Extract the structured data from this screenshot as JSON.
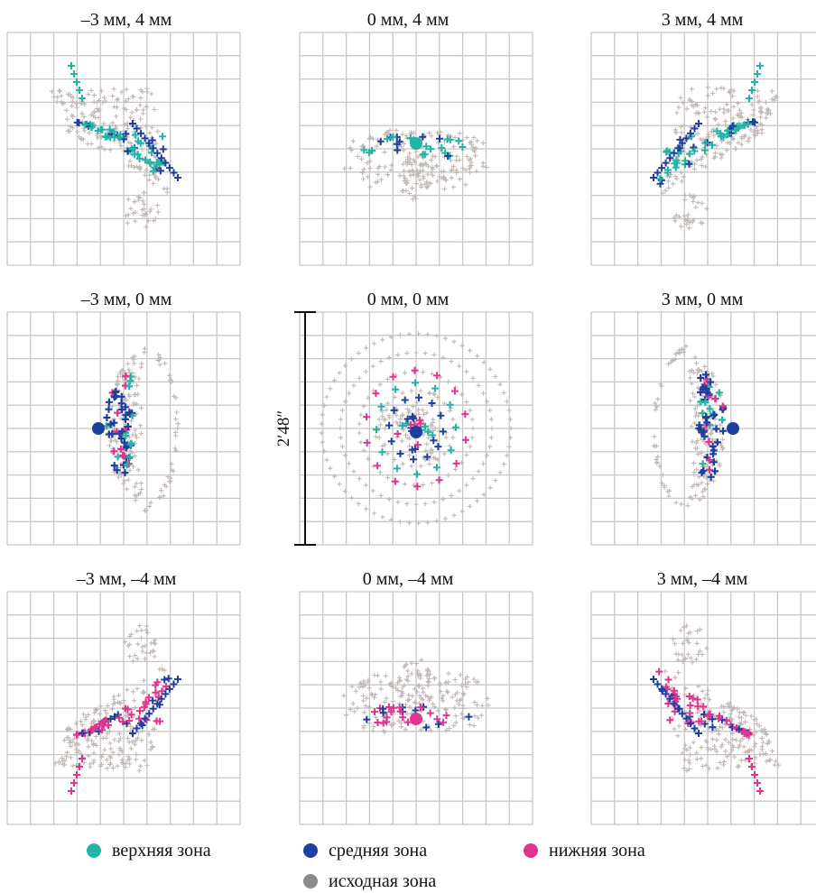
{
  "panels": [
    {
      "title": "–3 мм, 4 мм",
      "shape": "wing",
      "dir": "up-left"
    },
    {
      "title": "0 мм, 4 мм",
      "shape": "bow",
      "dir": "up"
    },
    {
      "title": "3 мм, 4 мм",
      "shape": "wing",
      "dir": "up-right"
    },
    {
      "title": "–3 мм, 0 мм",
      "shape": "half",
      "dir": "left"
    },
    {
      "title": "0 мм, 0 мм",
      "shape": "rings",
      "dir": "center"
    },
    {
      "title": "3 мм, 0 мм",
      "shape": "half",
      "dir": "right"
    },
    {
      "title": "–3 мм, –4 мм",
      "shape": "wing",
      "dir": "down-left"
    },
    {
      "title": "0 мм, –4 мм",
      "shape": "bow",
      "dir": "down"
    },
    {
      "title": "3 мм, –4 мм",
      "shape": "wing",
      "dir": "down-right"
    }
  ],
  "scale_bar": {
    "label": "2′48″"
  },
  "legend": [
    {
      "key": "top",
      "label": "верхняя зона",
      "color": "#22b5a6"
    },
    {
      "key": "mid",
      "label": "средняя зона",
      "color": "#1f3f9e"
    },
    {
      "key": "low",
      "label": "нижняя зона",
      "color": "#e0358f"
    },
    {
      "key": "base",
      "label": "исходная зона",
      "color": "#8a8a8a"
    }
  ],
  "colors": {
    "grid": "#c7c7c7",
    "base_cross": "#c2b8b5"
  }
}
